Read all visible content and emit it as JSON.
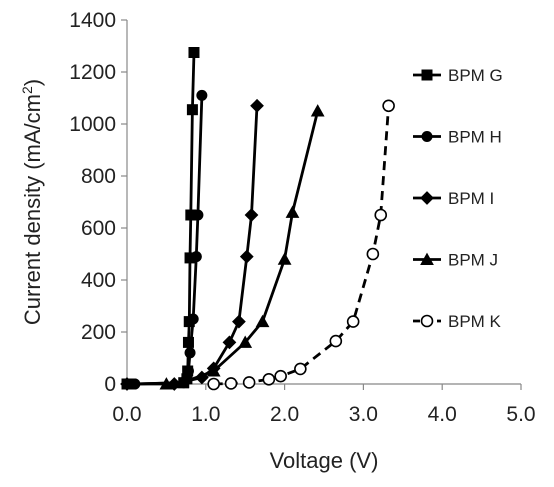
{
  "chart_data": {
    "type": "line",
    "title": "",
    "xlabel": "Voltage (V)",
    "ylabel_main": "Current density (mA/cm",
    "ylabel_sup": "2",
    "ylabel_close": ")",
    "xlim": [
      0,
      5
    ],
    "ylim": [
      0,
      1400
    ],
    "xticks": [
      0,
      1,
      2,
      3,
      4,
      5
    ],
    "xtick_labels": [
      "0.0",
      "1.0",
      "2.0",
      "3.0",
      "4.0",
      "5.0"
    ],
    "yticks": [
      0,
      200,
      400,
      600,
      800,
      1000,
      1200,
      1400
    ],
    "ytick_labels": [
      "0",
      "200",
      "400",
      "600",
      "800",
      "1000",
      "1200",
      "1400"
    ],
    "grid": false,
    "legend_position": "right",
    "series": [
      {
        "name": "BPM G",
        "marker": "square",
        "dash": "solid",
        "color": "#000000",
        "points": [
          [
            0.0,
            0
          ],
          [
            0.05,
            0
          ],
          [
            0.72,
            5
          ],
          [
            0.76,
            20
          ],
          [
            0.77,
            50
          ],
          [
            0.78,
            160
          ],
          [
            0.79,
            240
          ],
          [
            0.8,
            485
          ],
          [
            0.81,
            650
          ],
          [
            0.83,
            1055
          ],
          [
            0.85,
            1275
          ]
        ]
      },
      {
        "name": "BPM H",
        "marker": "circle",
        "dash": "solid",
        "color": "#000000",
        "points": [
          [
            0.0,
            0
          ],
          [
            0.1,
            0
          ],
          [
            0.72,
            5
          ],
          [
            0.78,
            50
          ],
          [
            0.8,
            120
          ],
          [
            0.84,
            250
          ],
          [
            0.88,
            490
          ],
          [
            0.9,
            650
          ],
          [
            0.95,
            1110
          ]
        ]
      },
      {
        "name": "BPM I",
        "marker": "diamond",
        "dash": "solid",
        "color": "#000000",
        "points": [
          [
            0.0,
            0
          ],
          [
            0.6,
            0
          ],
          [
            0.95,
            25
          ],
          [
            1.1,
            60
          ],
          [
            1.3,
            160
          ],
          [
            1.42,
            240
          ],
          [
            1.52,
            490
          ],
          [
            1.58,
            650
          ],
          [
            1.65,
            1070
          ]
        ]
      },
      {
        "name": "BPM J",
        "marker": "triangle",
        "dash": "solid",
        "color": "#000000",
        "points": [
          [
            0.5,
            0
          ],
          [
            0.7,
            5
          ],
          [
            1.1,
            50
          ],
          [
            1.5,
            160
          ],
          [
            1.72,
            240
          ],
          [
            2.0,
            480
          ],
          [
            2.1,
            660
          ],
          [
            2.42,
            1050
          ]
        ]
      },
      {
        "name": "BPM K",
        "marker": "open-circle",
        "dash": "dashed",
        "color": "#000000",
        "points": [
          [
            1.1,
            0
          ],
          [
            1.32,
            2
          ],
          [
            1.55,
            6
          ],
          [
            1.8,
            18
          ],
          [
            1.95,
            30
          ],
          [
            2.2,
            58
          ],
          [
            2.65,
            165
          ],
          [
            2.87,
            240
          ],
          [
            3.12,
            500
          ],
          [
            3.22,
            650
          ],
          [
            3.32,
            1070
          ]
        ]
      }
    ]
  }
}
